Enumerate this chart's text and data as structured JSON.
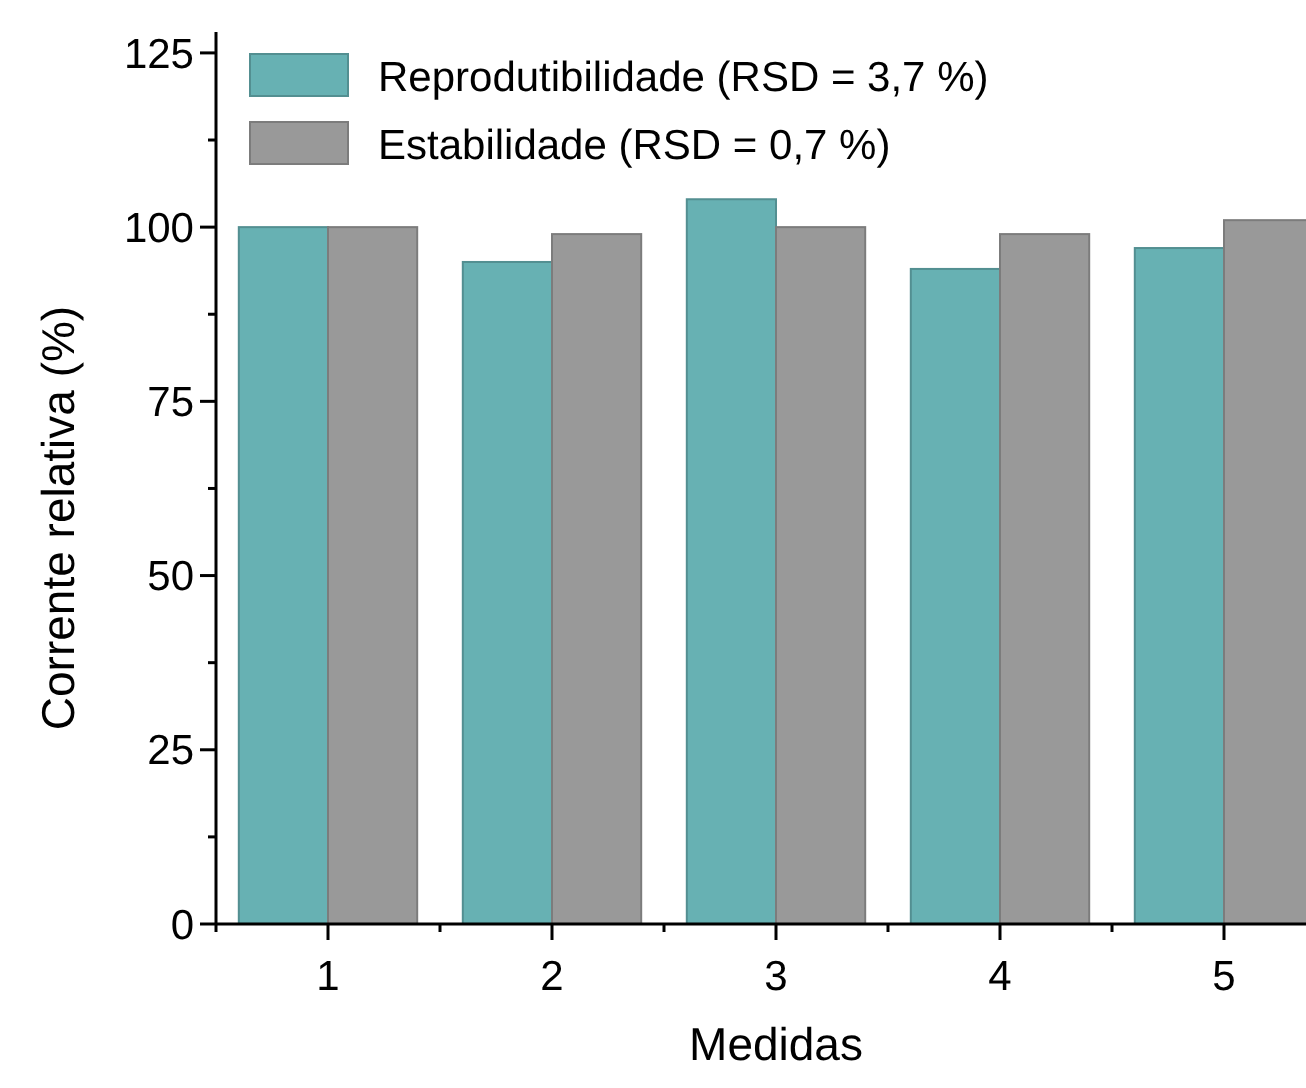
{
  "chart_data": {
    "type": "bar",
    "xlabel": "Medidas",
    "ylabel": "Corrente relativa (%)",
    "categories": [
      "1",
      "2",
      "3",
      "4",
      "5"
    ],
    "series": [
      {
        "name": "Reprodutibilidade (RSD = 3,7 %)",
        "color": "#67b1b3",
        "values": [
          100,
          95,
          104,
          94,
          97
        ]
      },
      {
        "name": "Estabilidade (RSD = 0,7 %)",
        "color": "#999999",
        "values": [
          100,
          99,
          100,
          99,
          101
        ]
      }
    ],
    "ylim": [
      0,
      128
    ],
    "yticks": [
      0,
      25,
      50,
      75,
      100,
      125
    ],
    "grid": false,
    "legend": "top left"
  }
}
